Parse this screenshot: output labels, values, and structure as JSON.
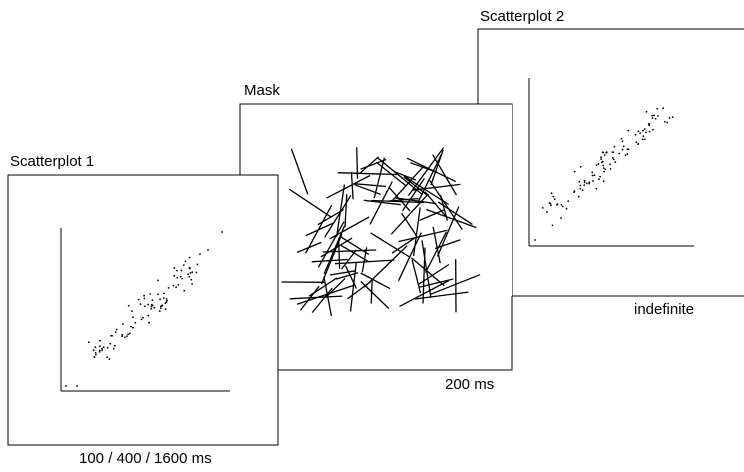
{
  "screens": {
    "scatterplot2": {
      "title": "Scatterplot 2",
      "duration": "indefinite"
    },
    "mask": {
      "title": "Mask",
      "duration": "200 ms"
    },
    "scatterplot1": {
      "title": "Scatterplot 1",
      "duration": "100 / 400 / 1600 ms"
    }
  }
}
